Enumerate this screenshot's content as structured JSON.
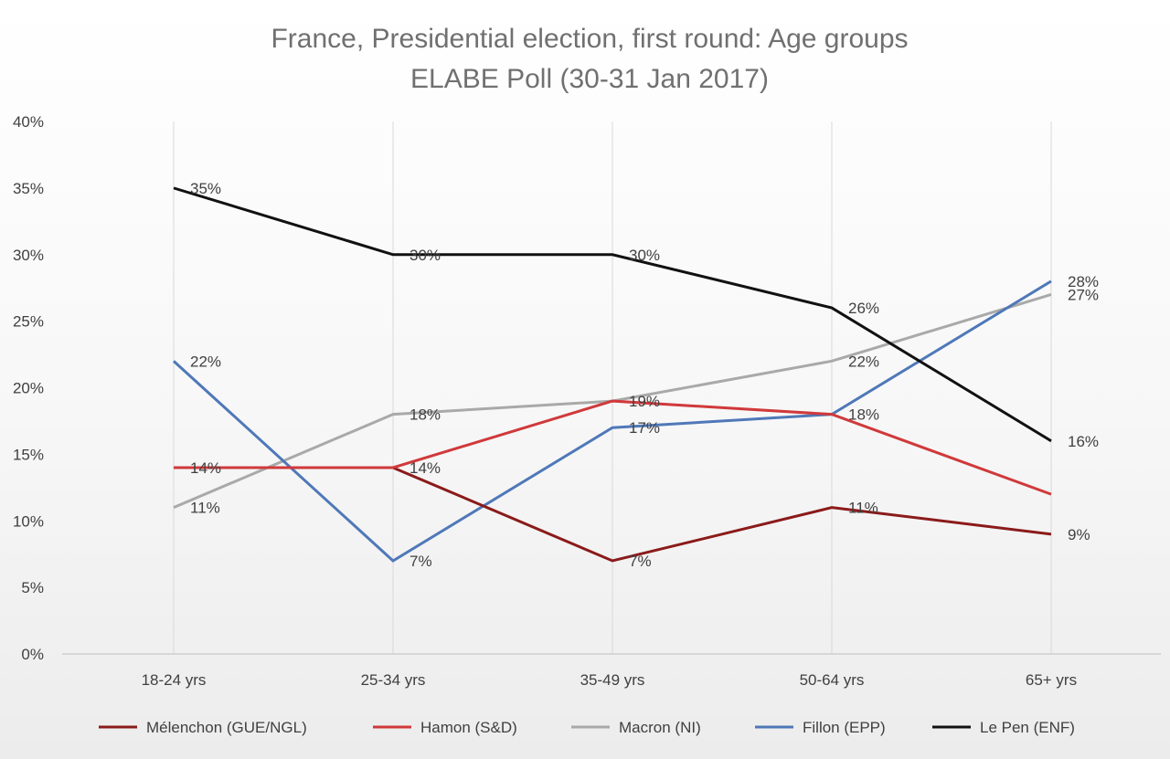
{
  "chart_data": {
    "type": "line",
    "title": "France, Presidential election, first round: Age groups",
    "subtitle": "ELABE Poll (30-31 Jan 2017)",
    "categories": [
      "18-24 yrs",
      "25-34 yrs",
      "35-49 yrs",
      "50-64 yrs",
      "65+ yrs"
    ],
    "ylim": [
      0,
      40
    ],
    "yticks": [
      "0%",
      "5%",
      "10%",
      "15%",
      "20%",
      "25%",
      "30%",
      "35%",
      "40%"
    ],
    "grid": "vertical",
    "legend_position": "bottom",
    "series": [
      {
        "name": "Mélenchon (GUE/NGL)",
        "color": "#8b1a1a",
        "values": [
          14,
          14,
          7,
          11,
          9
        ],
        "labels": [
          "14%",
          "14%",
          "7%",
          "11%",
          "9%"
        ]
      },
      {
        "name": "Hamon (S&D)",
        "color": "#d0393b",
        "values": [
          14,
          14,
          19,
          18,
          12
        ],
        "labels": []
      },
      {
        "name": "Macron (NI)",
        "color": "#a9a9a9",
        "values": [
          11,
          18,
          19,
          22,
          27
        ],
        "labels": [
          "11%",
          "18%",
          "19%",
          "22%",
          "27%"
        ]
      },
      {
        "name": "Fillon (EPP)",
        "color": "#4f78b8",
        "values": [
          22,
          7,
          17,
          18,
          28
        ],
        "labels": [
          "22%",
          "7%",
          "17%",
          "18%",
          "28%"
        ]
      },
      {
        "name": "Le Pen (ENF)",
        "color": "#111111",
        "values": [
          35,
          30,
          30,
          26,
          16
        ],
        "labels": [
          "35%",
          "30%",
          "30%",
          "26%",
          "16%"
        ]
      }
    ]
  }
}
